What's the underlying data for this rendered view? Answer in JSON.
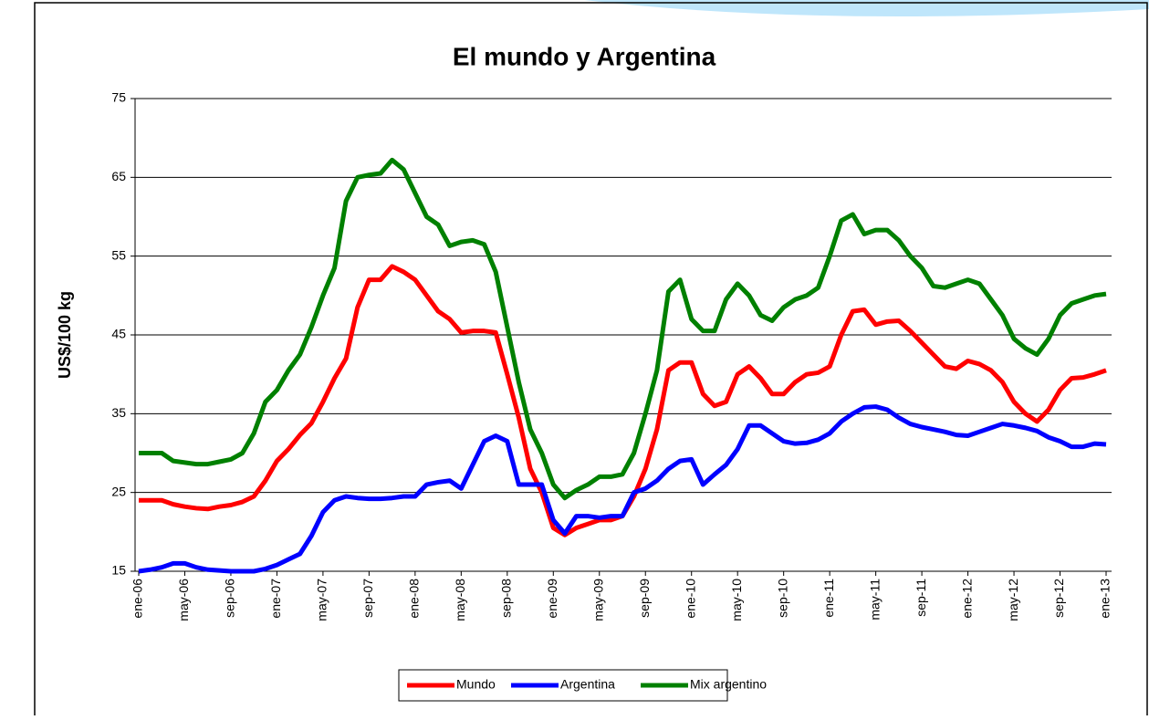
{
  "chart_data": {
    "type": "line",
    "title": "El mundo y Argentina",
    "ylabel": "US$/100 kg",
    "categories": [
      "ene-06",
      null,
      null,
      null,
      "may-06",
      null,
      null,
      null,
      "sep-06",
      null,
      null,
      null,
      "ene-07",
      null,
      null,
      null,
      "may-07",
      null,
      null,
      null,
      "sep-07",
      null,
      null,
      null,
      "ene-08",
      null,
      null,
      null,
      "may-08",
      null,
      null,
      null,
      "sep-08",
      null,
      null,
      null,
      "ene-09",
      null,
      null,
      null,
      "may-09",
      null,
      null,
      null,
      "sep-09",
      null,
      null,
      null,
      "ene-10",
      null,
      null,
      null,
      "may-10",
      null,
      null,
      null,
      "sep-10",
      null,
      null,
      null,
      "ene-11",
      null,
      null,
      null,
      "may-11",
      null,
      null,
      null,
      "sep-11",
      null,
      null,
      null,
      "ene-12",
      null,
      null,
      null,
      "may-12",
      null,
      null,
      null,
      "sep-12",
      null,
      null,
      null,
      "ene-13"
    ],
    "series": [
      {
        "name": "Mundo",
        "color": "#ff0000",
        "values": [
          24,
          24,
          24,
          23.5,
          23.2,
          23,
          22.9,
          23.2,
          23.4,
          23.8,
          24.5,
          26.5,
          29,
          30.5,
          32.3,
          33.8,
          36.5,
          39.5,
          42,
          48.5,
          52,
          52,
          53.7,
          53,
          52,
          50,
          48,
          47,
          45.3,
          45.5,
          45.5,
          45.3,
          40,
          34.5,
          28,
          25,
          20.5,
          19.6,
          20.5,
          21,
          21.5,
          21.5,
          22,
          24.5,
          28,
          33,
          40.5,
          41.5,
          41.5,
          37.5,
          36,
          36.5,
          40,
          41,
          39.5,
          37.5,
          37.5,
          39,
          40,
          40.2,
          41,
          45,
          48,
          48.2,
          46.3,
          46.7,
          46.8,
          45.5,
          44,
          42.5,
          41,
          40.7,
          41.7,
          41.3,
          40.5,
          39,
          36.5,
          35,
          34,
          35.5,
          38,
          39.5,
          39.6,
          40,
          40.5
        ]
      },
      {
        "name": "Argentina",
        "color": "#0000ff",
        "values": [
          15,
          15.2,
          15.5,
          16,
          16,
          15.5,
          15.2,
          15.1,
          15,
          15,
          15,
          15.3,
          15.8,
          16.5,
          17.2,
          19.5,
          22.5,
          24,
          24.5,
          24.3,
          24.2,
          24.2,
          24.3,
          24.5,
          24.5,
          26,
          26.3,
          26.5,
          25.5,
          28.5,
          31.5,
          32.2,
          31.5,
          26,
          26,
          26,
          21.5,
          19.8,
          22,
          22,
          21.8,
          22,
          22,
          25,
          25.5,
          26.5,
          28,
          29,
          29.2,
          26,
          27.3,
          28.5,
          30.5,
          33.5,
          33.5,
          32.5,
          31.5,
          31.2,
          31.3,
          31.7,
          32.5,
          34,
          35,
          35.8,
          35.9,
          35.5,
          34.5,
          33.7,
          33.3,
          33,
          32.7,
          32.3,
          32.2,
          32.7,
          33.2,
          33.7,
          33.5,
          33.2,
          32.8,
          32,
          31.5,
          30.8,
          30.8,
          31.2,
          31.1
        ]
      },
      {
        "name": "Mix argentino",
        "color": "#008000",
        "values": [
          30,
          30,
          30,
          29,
          28.8,
          28.6,
          28.6,
          28.9,
          29.2,
          30,
          32.5,
          36.5,
          38,
          40.5,
          42.5,
          46,
          50,
          53.5,
          62,
          65,
          65.3,
          65.5,
          67.2,
          66,
          63,
          60,
          59,
          56.3,
          56.8,
          57,
          56.5,
          53,
          46,
          39,
          33,
          30,
          26,
          24.3,
          25.3,
          26,
          27,
          27,
          27.3,
          30,
          35,
          40.5,
          50.5,
          52,
          47,
          45.5,
          45.5,
          49.5,
          51.5,
          50,
          47.5,
          46.8,
          48.5,
          49.5,
          50,
          51,
          55,
          59.5,
          60.3,
          57.8,
          58.3,
          58.3,
          57,
          55,
          53.5,
          51.2,
          51,
          51.5,
          52,
          51.5,
          49.5,
          47.5,
          44.5,
          43.3,
          42.5,
          44.5,
          47.5,
          49,
          49.5,
          50,
          50.2
        ]
      }
    ],
    "ylim": [
      15,
      75
    ],
    "yticks": [
      15,
      25,
      35,
      45,
      55,
      65,
      75
    ],
    "grid": true,
    "legend": "bottom"
  }
}
